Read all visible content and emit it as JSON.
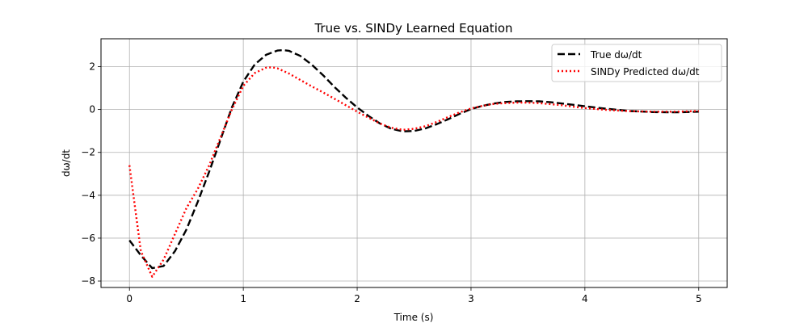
{
  "chart_data": {
    "type": "line",
    "title": "True vs. SINDy Learned Equation",
    "xlabel": "Time (s)",
    "ylabel": "dω/dt",
    "xlim": [
      -0.25,
      5.25
    ],
    "ylim": [
      -8.3,
      3.3
    ],
    "xticks": [
      0,
      1,
      2,
      3,
      4,
      5
    ],
    "xtick_labels": [
      "0",
      "1",
      "2",
      "3",
      "4",
      "5"
    ],
    "yticks": [
      -8,
      -6,
      -4,
      -2,
      0,
      2
    ],
    "ytick_labels": [
      "−8",
      "−6",
      "−4",
      "−2",
      "0",
      "2"
    ],
    "grid": true,
    "legend_position": "upper-right",
    "series": [
      {
        "name": "True dω/dt",
        "color": "#000000",
        "style": "dashed",
        "x": [
          0,
          0.1,
          0.2,
          0.3,
          0.4,
          0.5,
          0.6,
          0.7,
          0.8,
          0.9,
          1.0,
          1.1,
          1.2,
          1.3,
          1.35,
          1.4,
          1.5,
          1.6,
          1.7,
          1.8,
          1.9,
          2.0,
          2.1,
          2.2,
          2.3,
          2.4,
          2.5,
          2.6,
          2.7,
          2.8,
          2.9,
          3.0,
          3.1,
          3.2,
          3.3,
          3.4,
          3.5,
          3.6,
          3.7,
          3.8,
          3.9,
          4.0,
          4.2,
          4.4,
          4.6,
          4.8,
          5.0
        ],
        "y": [
          -6.1,
          -6.8,
          -7.4,
          -7.3,
          -6.6,
          -5.6,
          -4.3,
          -2.9,
          -1.4,
          0.1,
          1.3,
          2.1,
          2.55,
          2.75,
          2.77,
          2.74,
          2.5,
          2.1,
          1.6,
          1.05,
          0.55,
          0.1,
          -0.3,
          -0.65,
          -0.9,
          -1.02,
          -1.0,
          -0.88,
          -0.68,
          -0.45,
          -0.2,
          0.02,
          0.17,
          0.28,
          0.35,
          0.38,
          0.39,
          0.38,
          0.34,
          0.28,
          0.22,
          0.15,
          0.03,
          -0.07,
          -0.12,
          -0.13,
          -0.1
        ]
      },
      {
        "name": "SINDy Predicted dω/dt",
        "color": "#ff0000",
        "style": "dotted",
        "x": [
          0,
          0.1,
          0.2,
          0.3,
          0.4,
          0.5,
          0.6,
          0.7,
          0.8,
          0.9,
          1.0,
          1.1,
          1.2,
          1.25,
          1.3,
          1.4,
          1.5,
          1.6,
          1.7,
          1.8,
          1.9,
          2.0,
          2.1,
          2.2,
          2.3,
          2.4,
          2.5,
          2.6,
          2.7,
          2.8,
          2.9,
          3.0,
          3.1,
          3.2,
          3.3,
          3.4,
          3.5,
          3.6,
          3.7,
          3.8,
          3.9,
          4.0,
          4.2,
          4.4,
          4.6,
          4.8,
          5.0
        ],
        "y": [
          -2.6,
          -6.6,
          -7.8,
          -7.0,
          -5.8,
          -4.6,
          -3.7,
          -2.6,
          -1.3,
          0.0,
          1.1,
          1.7,
          1.95,
          1.97,
          1.92,
          1.68,
          1.38,
          1.08,
          0.8,
          0.5,
          0.2,
          -0.1,
          -0.38,
          -0.65,
          -0.85,
          -0.95,
          -0.9,
          -0.78,
          -0.58,
          -0.35,
          -0.13,
          0.05,
          0.17,
          0.26,
          0.3,
          0.32,
          0.32,
          0.3,
          0.25,
          0.2,
          0.13,
          0.07,
          -0.02,
          -0.08,
          -0.1,
          -0.1,
          -0.07
        ]
      }
    ]
  }
}
